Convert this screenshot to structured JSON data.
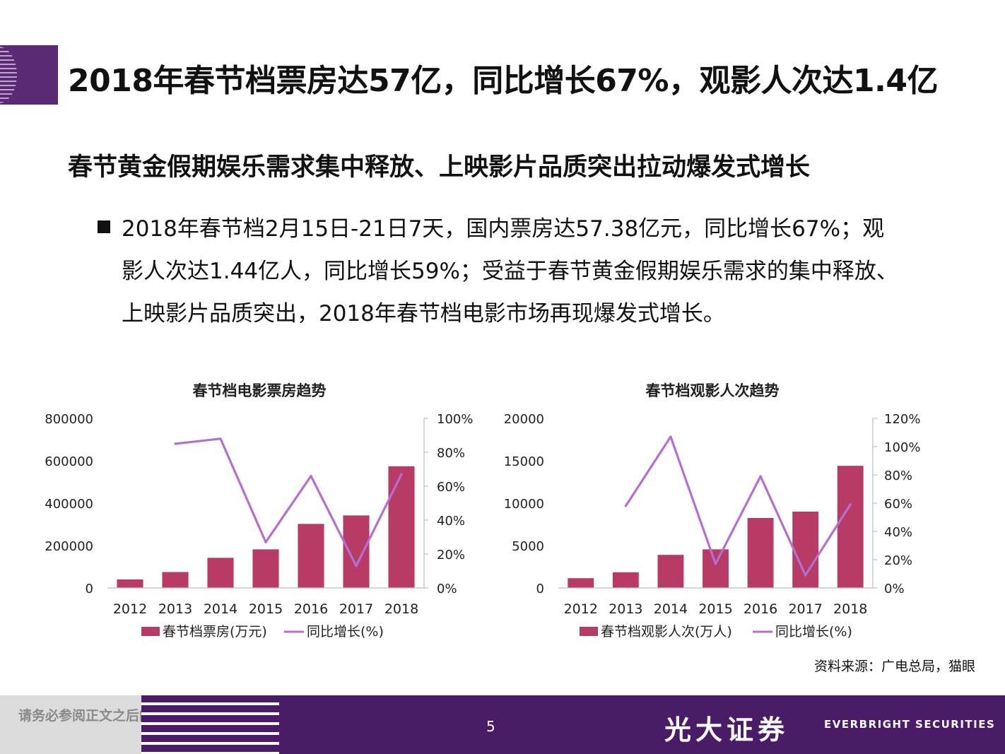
{
  "header": {
    "title": "2018年春节档票房达57亿，同比增长67%，观影人次达1.4亿",
    "subtitle": "春节黄金假期娱乐需求集中释放、上映影片品质突出拉动爆发式增长"
  },
  "bullet": {
    "text": "2018年春节档2月15日-21日7天，国内票房达57.38亿元，同比增长67%；观影人次达1.44亿人，同比增长59%；受益于春节黄金假期娱乐需求的集中释放、上映影片品质突出，2018年春节档电影市场再现爆发式增长。"
  },
  "source": "资料来源：广电总局，猫眼",
  "footer": {
    "disclaimer": "请务必参阅正文之后的重要声明",
    "page_number": "5",
    "brand_cn": "光大证券",
    "brand_en": "EVERBRIGHT SECURITIES"
  },
  "colors": {
    "bar": "#b83b66",
    "line": "#b46fd0",
    "accent": "#4a1b66"
  },
  "chart_data": [
    {
      "type": "bar",
      "title": "春节档电影票房趋势",
      "categories": [
        "2012",
        "2013",
        "2014",
        "2015",
        "2016",
        "2017",
        "2018"
      ],
      "series": [
        {
          "name": "春节档票房(万元)",
          "type": "bar",
          "axis": "left",
          "values": [
            40000,
            75000,
            142000,
            182000,
            302000,
            342000,
            573800
          ]
        },
        {
          "name": "同比增长(%)",
          "type": "line",
          "axis": "right",
          "values": [
            null,
            85,
            88,
            27,
            66,
            13,
            67
          ]
        }
      ],
      "ylim": [
        0,
        800000
      ],
      "yticks": [
        "800000",
        "600000",
        "400000",
        "200000",
        "0"
      ],
      "y2lim": [
        0,
        100
      ],
      "y2ticks": [
        "100%",
        "80%",
        "60%",
        "40%",
        "20%",
        "0%"
      ],
      "legend": "bottom"
    },
    {
      "type": "bar",
      "title": "春节档观影人次趋势",
      "categories": [
        "2012",
        "2013",
        "2014",
        "2015",
        "2016",
        "2017",
        "2018"
      ],
      "series": [
        {
          "name": "春节档观影人次(万人)",
          "type": "bar",
          "axis": "left",
          "values": [
            1150,
            1850,
            3900,
            4550,
            8250,
            9000,
            14400
          ]
        },
        {
          "name": "同比增长(%)",
          "type": "line",
          "axis": "right",
          "values": [
            null,
            58,
            107,
            17,
            79,
            9,
            59
          ]
        }
      ],
      "ylim": [
        0,
        20000
      ],
      "yticks": [
        "20000",
        "15000",
        "10000",
        "5000",
        "0"
      ],
      "y2lim": [
        0,
        120
      ],
      "y2ticks": [
        "120%",
        "100%",
        "80%",
        "60%",
        "40%",
        "20%",
        "0%"
      ],
      "legend": "bottom"
    }
  ]
}
